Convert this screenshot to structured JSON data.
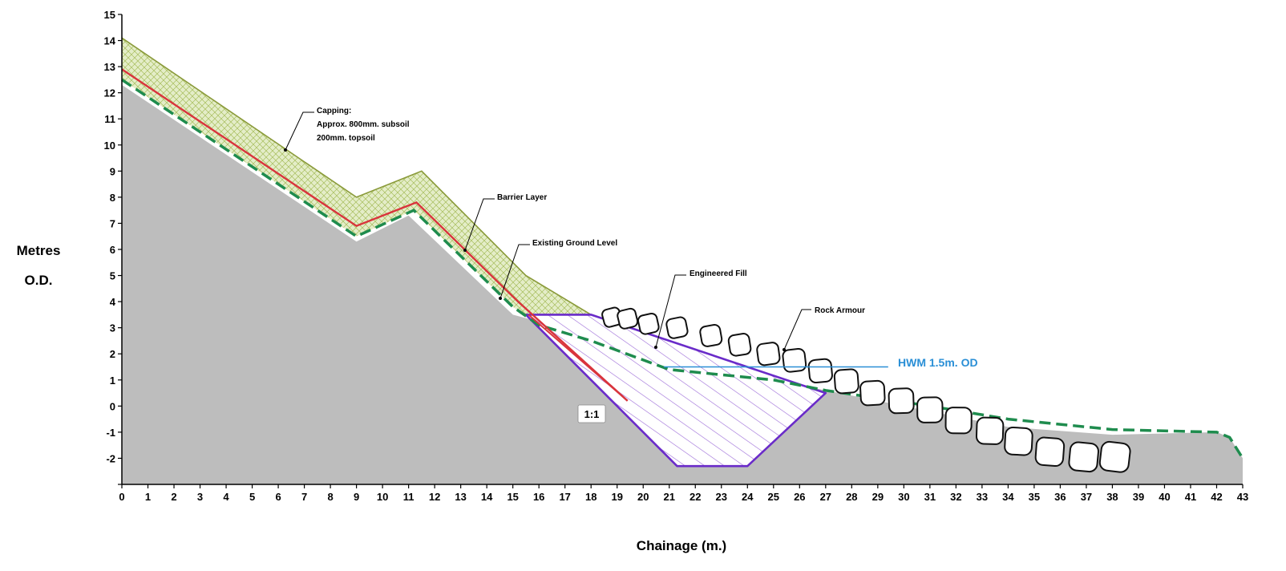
{
  "axes": {
    "ylabel_line1": "Metres",
    "ylabel_line2": "O.D.",
    "xlabel": "Chainage (m.)",
    "xlim": [
      0,
      43
    ],
    "ylim": [
      -3,
      15
    ],
    "x_ticks": [
      0,
      1,
      2,
      3,
      4,
      5,
      6,
      7,
      8,
      9,
      10,
      11,
      12,
      13,
      14,
      15,
      16,
      17,
      18,
      19,
      20,
      21,
      22,
      23,
      24,
      25,
      26,
      27,
      28,
      29,
      30,
      31,
      32,
      33,
      34,
      35,
      36,
      37,
      38,
      39,
      40,
      41,
      42,
      43
    ],
    "y_ticks": [
      15,
      14,
      13,
      12,
      11,
      10,
      9,
      8,
      7,
      6,
      5,
      4,
      3,
      2,
      1,
      0,
      -1,
      -2
    ]
  },
  "colors": {
    "ground": "#bdbdbd",
    "capping": "#e4edc8",
    "capping_edge": "#8a9a3a",
    "barrier": "#d9343c",
    "existing_ground": "#1f8c4e",
    "fill_outline": "#6a2bc9",
    "hwm": "#2a8fd6"
  },
  "layers": {
    "capping_top": [
      [
        0,
        14.1
      ],
      [
        9,
        8.0
      ],
      [
        11.5,
        9.0
      ],
      [
        15.5,
        5.0
      ],
      [
        18,
        3.5
      ]
    ],
    "barrier": [
      [
        0,
        12.9
      ],
      [
        9,
        6.9
      ],
      [
        11.3,
        7.8
      ],
      [
        15.2,
        4.0
      ],
      [
        19.4,
        0.2
      ]
    ],
    "existing_ground": [
      [
        0,
        12.5
      ],
      [
        9,
        6.5
      ],
      [
        11.2,
        7.5
      ],
      [
        15,
        3.8
      ],
      [
        16,
        3.1
      ],
      [
        18,
        2.5
      ],
      [
        21,
        1.4
      ],
      [
        25,
        1.0
      ],
      [
        27,
        0.6
      ],
      [
        31,
        0.0
      ],
      [
        34,
        -0.5
      ],
      [
        38,
        -0.9
      ],
      [
        42,
        -1.0
      ],
      [
        42.5,
        -1.2
      ],
      [
        43,
        -2.0
      ]
    ],
    "ground_surface": [
      [
        0,
        12.3
      ],
      [
        9,
        6.3
      ],
      [
        11,
        7.3
      ],
      [
        15,
        3.5
      ],
      [
        18,
        2.7
      ],
      [
        24,
        1.2
      ],
      [
        27,
        0.6
      ],
      [
        29,
        0.2
      ],
      [
        34,
        -0.8
      ],
      [
        38,
        -1.1
      ],
      [
        42,
        -1.0
      ],
      [
        42.5,
        -1.2
      ],
      [
        43,
        -2.0
      ]
    ],
    "engineered_fill": [
      [
        15.5,
        3.5
      ],
      [
        18,
        3.5
      ],
      [
        27,
        0.5
      ],
      [
        24,
        -2.3
      ],
      [
        21.3,
        -2.3
      ]
    ],
    "rock_armour": [
      [
        18.8,
        3.4
      ],
      [
        19.4,
        3.35
      ],
      [
        20.2,
        3.15
      ],
      [
        21.3,
        3.0
      ],
      [
        22.6,
        2.7
      ],
      [
        23.7,
        2.35
      ],
      [
        24.8,
        2.0
      ],
      [
        25.8,
        1.75
      ],
      [
        26.8,
        1.35
      ],
      [
        27.8,
        0.95
      ],
      [
        28.8,
        0.5
      ],
      [
        29.9,
        0.2
      ],
      [
        31.0,
        -0.15
      ],
      [
        32.1,
        -0.55
      ],
      [
        33.3,
        -0.95
      ],
      [
        34.4,
        -1.35
      ],
      [
        35.6,
        -1.75
      ],
      [
        36.9,
        -1.95
      ],
      [
        38.1,
        -1.95
      ]
    ],
    "hwm_line": [
      [
        20.8,
        1.5
      ],
      [
        29.4,
        1.5
      ]
    ],
    "slope_marker": [
      [
        15.6,
        3.5
      ],
      [
        19.4,
        0.2
      ]
    ]
  },
  "annotations": {
    "capping_line1": "Capping:",
    "capping_line2": "Approx. 800mm. subsoil",
    "capping_line3": "200mm. topsoil",
    "barrier": "Barrier Layer",
    "existing": "Existing Ground Level",
    "fill": "Engineered Fill",
    "rock": "Rock Armour",
    "hwm": "HWM 1.5m. OD",
    "ratio": "1:1"
  }
}
